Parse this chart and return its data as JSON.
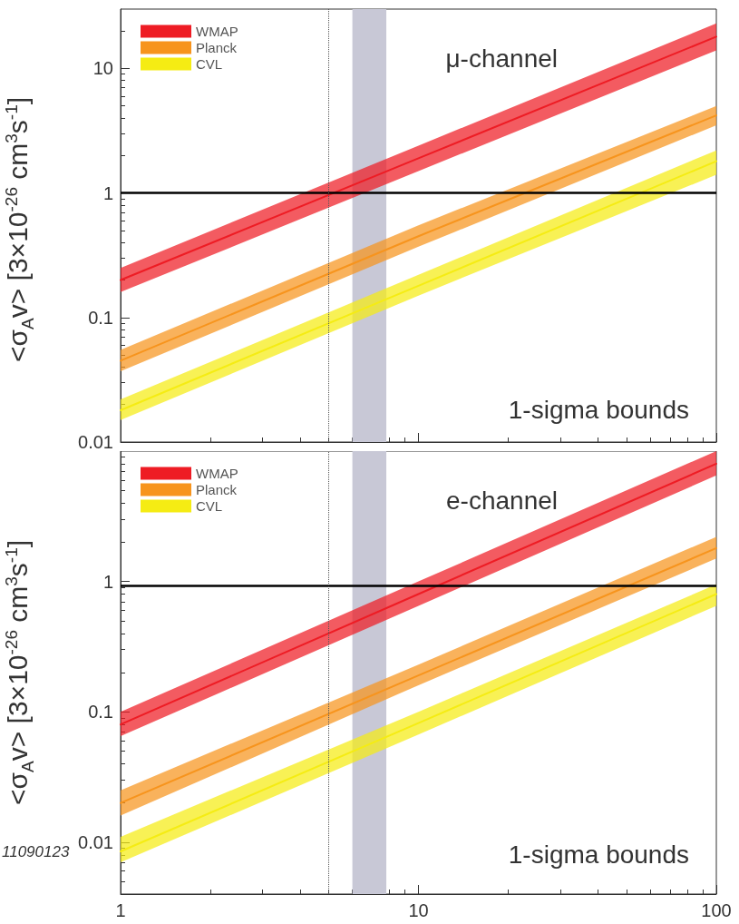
{
  "chart_data": [
    {
      "type": "line",
      "ylabel": "<σ$_{A}$v> [3×10$^{-26}$ cm$^{3}$s$^{-1}$]",
      "annotations": [
        "μ-channel",
        "1-sigma bounds"
      ],
      "log": "xy",
      "xlim": [
        1,
        100
      ],
      "xticks": [
        1,
        10,
        100
      ],
      "ylim": [
        0.01,
        30
      ],
      "yticks": [
        0.01,
        0.1,
        1,
        10
      ],
      "tick_labels": "y",
      "grid": false,
      "legend": "top left",
      "marker": "none",
      "line_style": "solid",
      "ref_lines": [
        {
          "axis": "y",
          "value": 1,
          "color": "#000000",
          "line_style": "solid"
        },
        {
          "axis": "x",
          "value": 5,
          "color": "#555555",
          "line_style": "dotted"
        }
      ],
      "bands": [
        {
          "axis": "x",
          "from": 6,
          "to": 7.8,
          "color": "#c8c8d6"
        }
      ],
      "series": [
        {
          "name": "WMAP",
          "color": "#ee1c24",
          "x": [
            1,
            10,
            100
          ],
          "values": [
            0.2,
            1.9,
            18
          ],
          "lower": [
            0.16,
            1.5,
            14
          ],
          "upper": [
            0.25,
            2.4,
            23
          ]
        },
        {
          "name": "Planck",
          "color": "#f7941d",
          "x": [
            1,
            10,
            100
          ],
          "values": [
            0.045,
            0.45,
            4.2
          ],
          "lower": [
            0.037,
            0.37,
            3.5
          ],
          "upper": [
            0.055,
            0.55,
            5
          ]
        },
        {
          "name": "CVL",
          "color": "#f5ec13",
          "x": [
            1,
            10,
            100
          ],
          "values": [
            0.018,
            0.18,
            1.8
          ],
          "lower": [
            0.015,
            0.15,
            1.4
          ],
          "upper": [
            0.022,
            0.22,
            2.2
          ]
        }
      ]
    },
    {
      "type": "line",
      "ylabel": "<σ$_{A}$v> [3×10$^{-26}$ cm$^{3}$s$^{-1}$]",
      "annotations": [
        "e-channel",
        "1-sigma bounds",
        "11090123"
      ],
      "log": "xy",
      "xlim": [
        1,
        100
      ],
      "xticks": [
        1,
        10,
        100
      ],
      "ylim": [
        0.004,
        10
      ],
      "yticks": [
        0.01,
        0.1,
        1
      ],
      "grid": false,
      "legend": "top left",
      "marker": "none",
      "line_style": "solid",
      "ref_lines": [
        {
          "axis": "y",
          "value": 0.93,
          "color": "#000000",
          "line_style": "solid"
        },
        {
          "axis": "x",
          "value": 5,
          "color": "#555555",
          "line_style": "dotted"
        }
      ],
      "bands": [
        {
          "axis": "x",
          "from": 6,
          "to": 7.8,
          "color": "#c8c8d6"
        }
      ],
      "series": [
        {
          "name": "WMAP",
          "color": "#ee1c24",
          "x": [
            1,
            10,
            100
          ],
          "values": [
            0.08,
            0.8,
            8
          ],
          "lower": [
            0.065,
            0.65,
            6.5
          ],
          "upper": [
            0.1,
            1,
            10
          ]
        },
        {
          "name": "Planck",
          "color": "#f7941d",
          "x": [
            1,
            10,
            100
          ],
          "values": [
            0.02,
            0.19,
            1.8
          ],
          "lower": [
            0.016,
            0.16,
            1.5
          ],
          "upper": [
            0.025,
            0.23,
            2.2
          ]
        },
        {
          "name": "CVL",
          "color": "#f5ec13",
          "x": [
            1,
            10,
            100
          ],
          "values": [
            0.0085,
            0.082,
            0.8
          ],
          "lower": [
            0.007,
            0.067,
            0.65
          ],
          "upper": [
            0.011,
            0.1,
            0.95
          ]
        }
      ]
    }
  ]
}
